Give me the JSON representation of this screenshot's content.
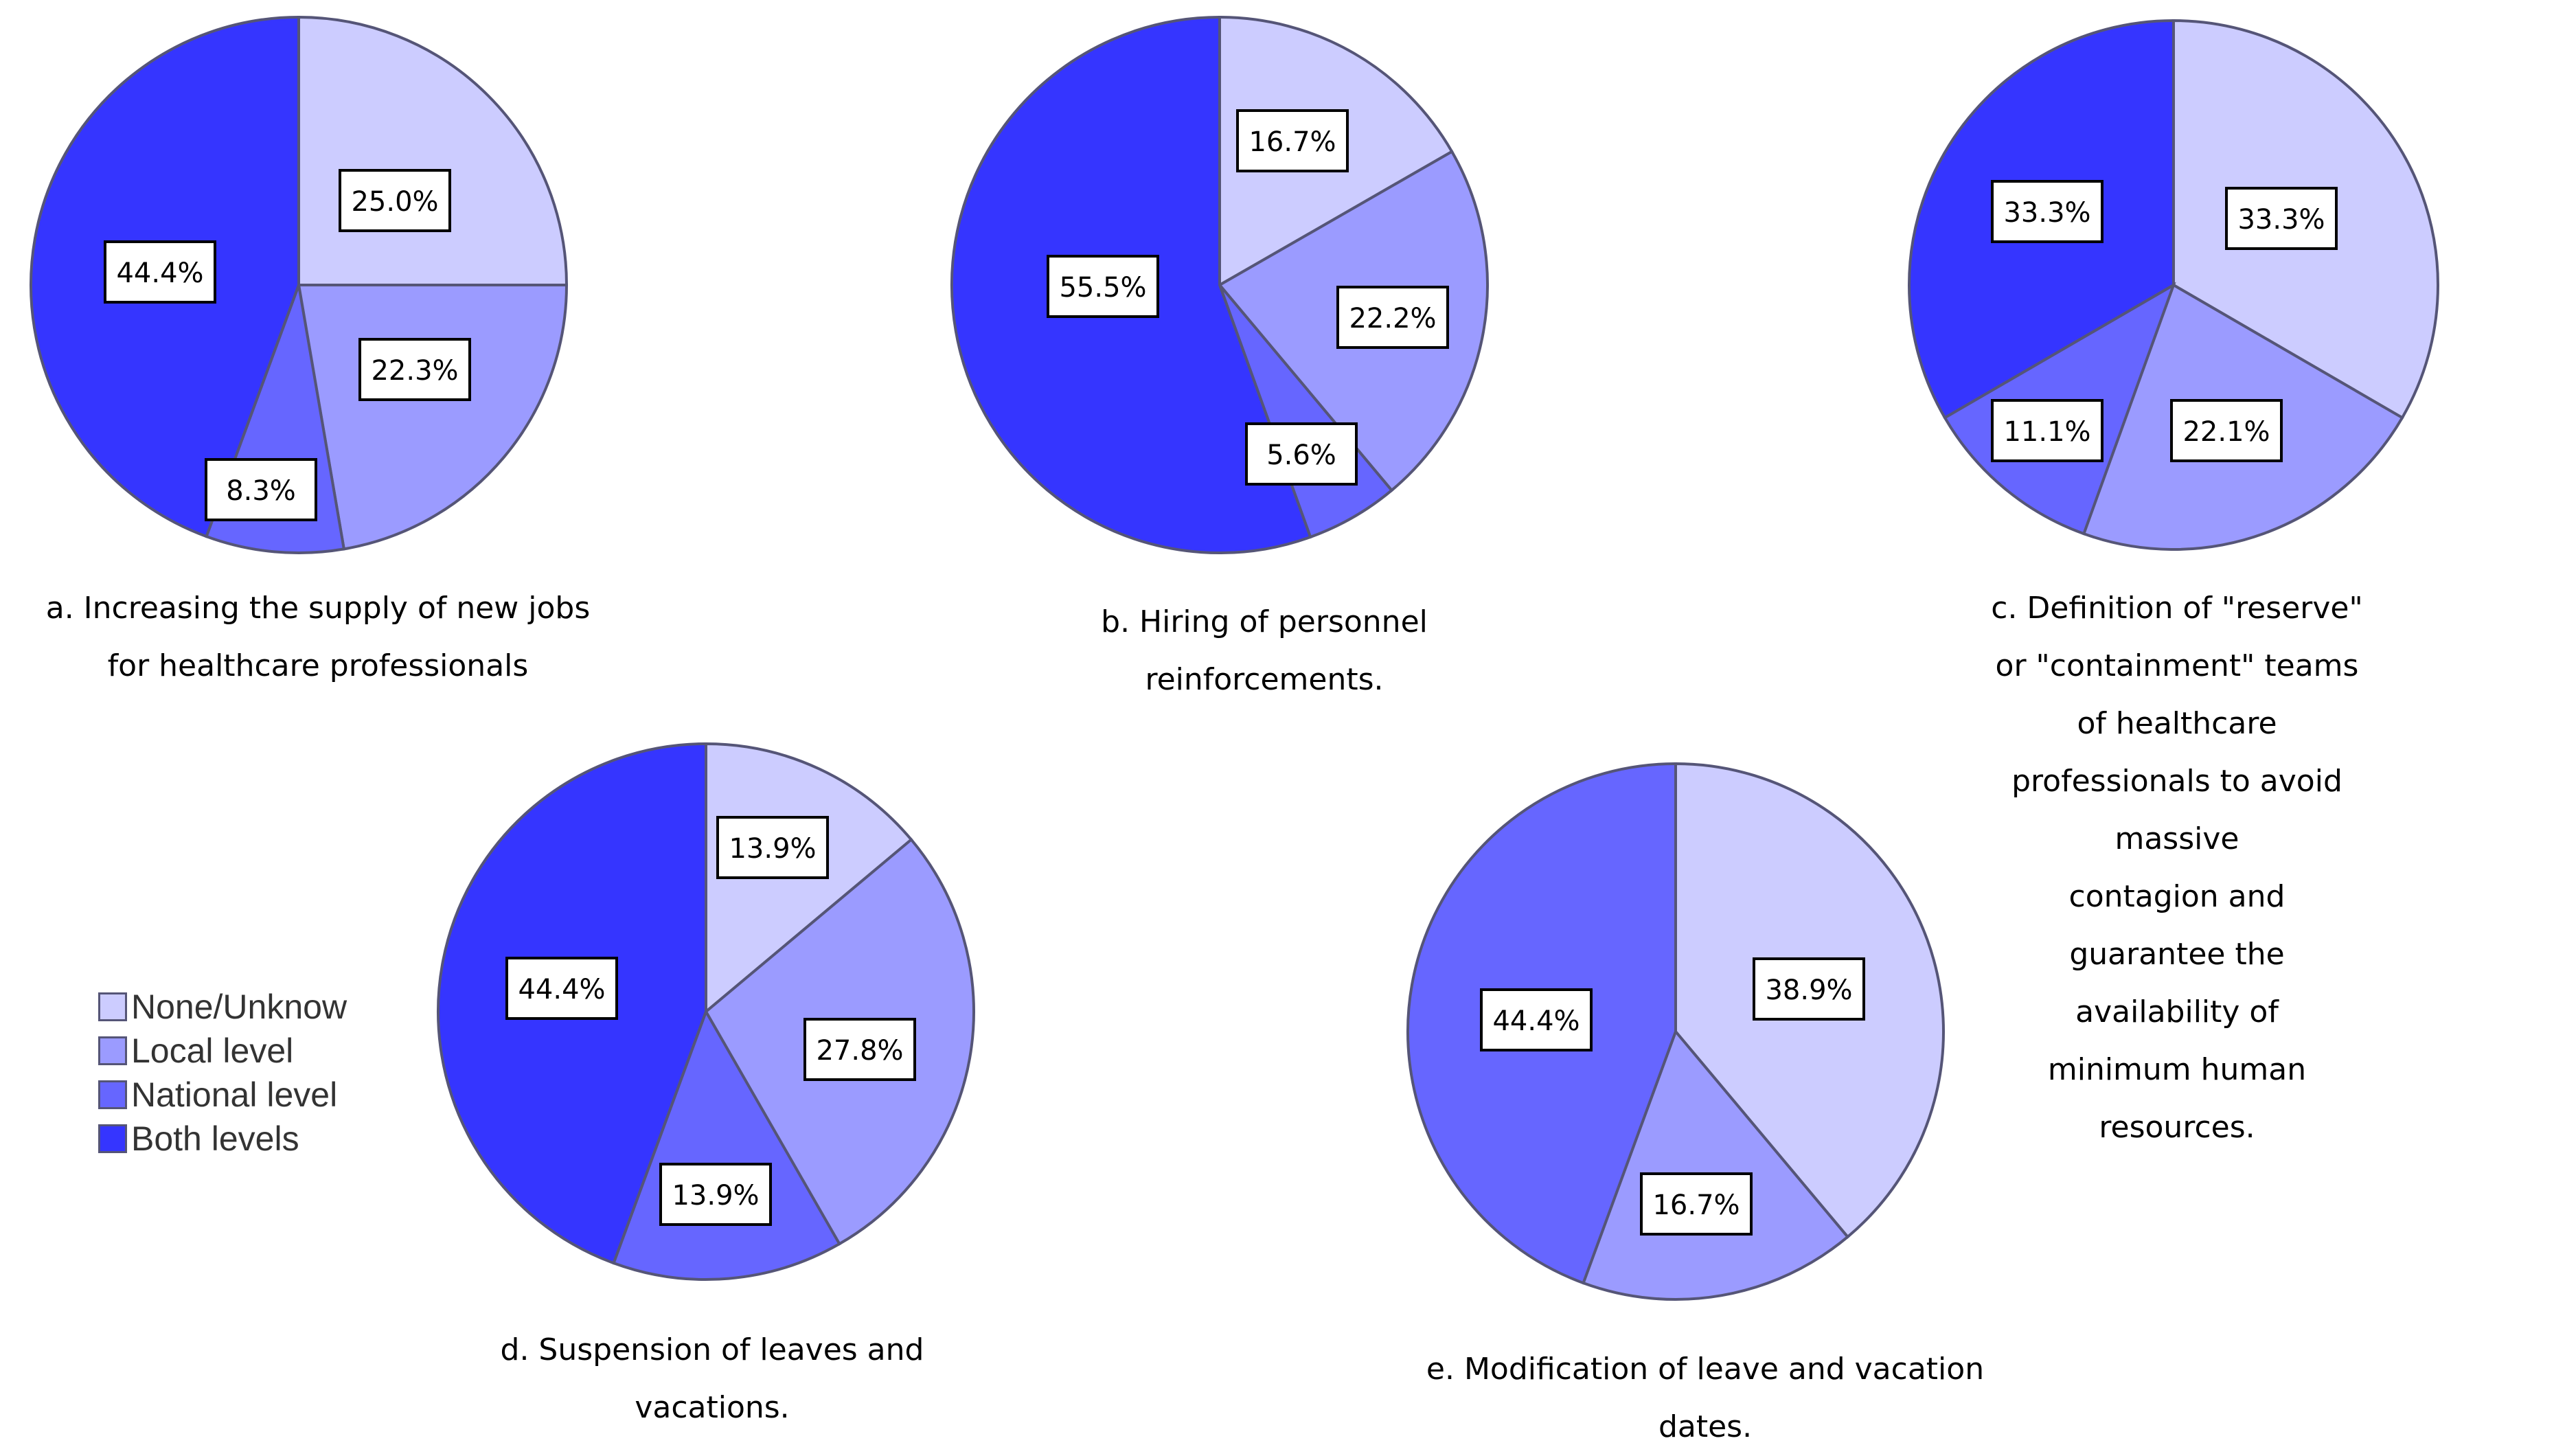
{
  "chart_data": [
    {
      "type": "pie",
      "panel": "a",
      "title": "a. Increasing the supply of new jobs\nfor healthcare professionals",
      "categories": [
        "None/Unknow",
        "Local level",
        "National level",
        "Both levels"
      ],
      "values": [
        25.0,
        22.3,
        8.3,
        44.4
      ],
      "labels": [
        "25.0%",
        "22.3%",
        "8.3%",
        "44.4%"
      ]
    },
    {
      "type": "pie",
      "panel": "b",
      "title": "b. Hiring of personnel\nreinforcements.",
      "categories": [
        "None/Unknow",
        "Local level",
        "National level",
        "Both levels"
      ],
      "values": [
        16.7,
        22.2,
        5.6,
        55.5
      ],
      "labels": [
        "16.7%",
        "22.2%",
        "5.6%",
        "55.5%"
      ]
    },
    {
      "type": "pie",
      "panel": "c",
      "title": "c. Definition of \"reserve\" or \"containment\"  teams\nof healthcare professionals to avoid massive\ncontagion and guarantee the availability  of\nminimum  human resources.",
      "categories": [
        "None/Unknow",
        "Local level",
        "National level",
        "Both levels"
      ],
      "values": [
        33.3,
        22.1,
        11.1,
        33.3
      ],
      "labels": [
        "33.3%",
        "22.1%",
        "11.1%",
        "33.3%"
      ]
    },
    {
      "type": "pie",
      "panel": "d",
      "title": "d. Suspension of leaves and\nvacations.",
      "categories": [
        "None/Unknow",
        "Local level",
        "National level",
        "Both levels"
      ],
      "values": [
        13.9,
        27.8,
        13.9,
        44.4
      ],
      "labels": [
        "13.9%",
        "27.8%",
        "13.9%",
        "44.4%"
      ]
    },
    {
      "type": "pie",
      "panel": "e",
      "title": "e. Modification of leave and vacation\ndates.",
      "categories": [
        "None/Unknow",
        "Local level",
        "National level"
      ],
      "values": [
        38.9,
        16.7,
        44.4
      ],
      "labels": [
        "38.9%",
        "16.7%",
        "44.4%"
      ]
    }
  ],
  "legend": {
    "items": [
      {
        "label": "None/Unknow",
        "color": "#ccccff"
      },
      {
        "label": "Local level",
        "color": "#9b9bff"
      },
      {
        "label": "National level",
        "color": "#6666ff"
      },
      {
        "label": "Both levels",
        "color": "#3535ff"
      }
    ]
  },
  "colors": {
    "None/Unknow": "#ccccff",
    "Local level": "#9b9bff",
    "National level": "#6666ff",
    "Both levels": "#3535ff",
    "edge": "#555577"
  }
}
